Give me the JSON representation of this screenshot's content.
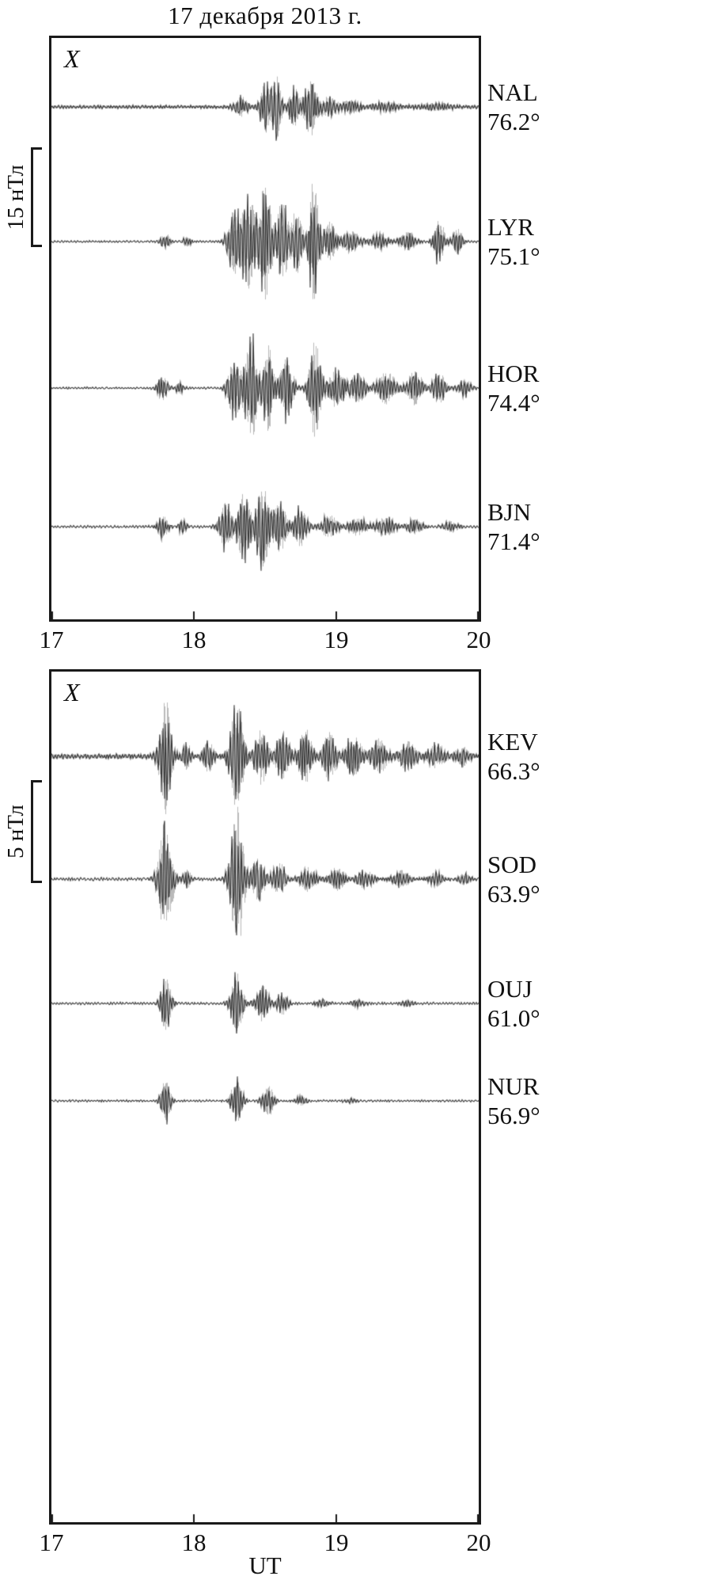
{
  "chart_data": {
    "type": "line",
    "title": "17 декабря 2013 г.",
    "xlabel": "UT",
    "x_range": [
      17,
      20
    ],
    "x_ticks": [
      "17",
      "18",
      "19",
      "20"
    ],
    "y_unit": "нТл",
    "legend_position": "right",
    "grid": false,
    "panels": [
      {
        "component": "X",
        "scale_bar": {
          "label": "15 нТл",
          "nT": 15
        },
        "series": [
          {
            "name": "NAL",
            "latitude": "76.2°",
            "baseline_noise_nT": 0.3,
            "envelope_bursts": [
              {
                "t": 18.33,
                "w": 0.05,
                "a": 1.6
              },
              {
                "t": 18.5,
                "w": 0.04,
                "a": 4.2
              },
              {
                "t": 18.58,
                "w": 0.035,
                "a": 5.4
              },
              {
                "t": 18.7,
                "w": 0.04,
                "a": 3.4
              },
              {
                "t": 18.82,
                "w": 0.05,
                "a": 5.0
              },
              {
                "t": 18.95,
                "w": 0.05,
                "a": 1.8
              },
              {
                "t": 19.1,
                "w": 0.07,
                "a": 1.0
              },
              {
                "t": 19.35,
                "w": 0.1,
                "a": 0.7
              },
              {
                "t": 19.7,
                "w": 0.12,
                "a": 0.5
              }
            ]
          },
          {
            "name": "LYR",
            "latitude": "75.1°",
            "baseline_noise_nT": 0.18,
            "envelope_bursts": [
              {
                "t": 17.8,
                "w": 0.035,
                "a": 1.4
              },
              {
                "t": 17.95,
                "w": 0.03,
                "a": 0.8
              },
              {
                "t": 18.28,
                "w": 0.05,
                "a": 5.5
              },
              {
                "t": 18.38,
                "w": 0.05,
                "a": 9.0
              },
              {
                "t": 18.5,
                "w": 0.05,
                "a": 10.5
              },
              {
                "t": 18.62,
                "w": 0.04,
                "a": 8.0
              },
              {
                "t": 18.72,
                "w": 0.04,
                "a": 6.0
              },
              {
                "t": 18.84,
                "w": 0.04,
                "a": 11.0
              },
              {
                "t": 18.95,
                "w": 0.05,
                "a": 3.5
              },
              {
                "t": 19.1,
                "w": 0.07,
                "a": 1.8
              },
              {
                "t": 19.3,
                "w": 0.07,
                "a": 1.4
              },
              {
                "t": 19.5,
                "w": 0.06,
                "a": 1.6
              },
              {
                "t": 19.72,
                "w": 0.04,
                "a": 4.2
              },
              {
                "t": 19.85,
                "w": 0.04,
                "a": 2.2
              }
            ]
          },
          {
            "name": "HOR",
            "latitude": "74.4°",
            "baseline_noise_nT": 0.18,
            "envelope_bursts": [
              {
                "t": 17.78,
                "w": 0.04,
                "a": 2.0
              },
              {
                "t": 17.9,
                "w": 0.03,
                "a": 0.9
              },
              {
                "t": 18.28,
                "w": 0.05,
                "a": 5.0
              },
              {
                "t": 18.4,
                "w": 0.05,
                "a": 9.5
              },
              {
                "t": 18.52,
                "w": 0.04,
                "a": 7.5
              },
              {
                "t": 18.65,
                "w": 0.05,
                "a": 5.5
              },
              {
                "t": 18.85,
                "w": 0.045,
                "a": 9.0
              },
              {
                "t": 19.0,
                "w": 0.06,
                "a": 3.5
              },
              {
                "t": 19.15,
                "w": 0.06,
                "a": 2.5
              },
              {
                "t": 19.35,
                "w": 0.07,
                "a": 2.8
              },
              {
                "t": 19.55,
                "w": 0.06,
                "a": 3.0
              },
              {
                "t": 19.72,
                "w": 0.05,
                "a": 2.6
              },
              {
                "t": 19.9,
                "w": 0.05,
                "a": 1.5
              }
            ]
          },
          {
            "name": "BJN",
            "latitude": "71.4°",
            "baseline_noise_nT": 0.22,
            "envelope_bursts": [
              {
                "t": 17.78,
                "w": 0.04,
                "a": 1.8
              },
              {
                "t": 17.92,
                "w": 0.03,
                "a": 1.0
              },
              {
                "t": 18.22,
                "w": 0.05,
                "a": 4.0
              },
              {
                "t": 18.35,
                "w": 0.05,
                "a": 6.0
              },
              {
                "t": 18.48,
                "w": 0.05,
                "a": 7.5
              },
              {
                "t": 18.6,
                "w": 0.05,
                "a": 5.0
              },
              {
                "t": 18.75,
                "w": 0.05,
                "a": 3.5
              },
              {
                "t": 18.95,
                "w": 0.06,
                "a": 2.0
              },
              {
                "t": 19.15,
                "w": 0.07,
                "a": 1.5
              },
              {
                "t": 19.35,
                "w": 0.07,
                "a": 1.6
              },
              {
                "t": 19.55,
                "w": 0.06,
                "a": 1.2
              },
              {
                "t": 19.8,
                "w": 0.06,
                "a": 0.8
              }
            ]
          }
        ]
      },
      {
        "component": "X",
        "scale_bar": {
          "label": "5 нТл",
          "nT": 5
        },
        "series": [
          {
            "name": "KEV",
            "latitude": "66.3°",
            "baseline_noise_nT": 0.14,
            "envelope_bursts": [
              {
                "t": 17.8,
                "w": 0.045,
                "a": 3.2
              },
              {
                "t": 17.95,
                "w": 0.03,
                "a": 0.7
              },
              {
                "t": 18.1,
                "w": 0.04,
                "a": 0.8
              },
              {
                "t": 18.3,
                "w": 0.05,
                "a": 3.0
              },
              {
                "t": 18.47,
                "w": 0.05,
                "a": 1.5
              },
              {
                "t": 18.62,
                "w": 0.05,
                "a": 1.3
              },
              {
                "t": 18.78,
                "w": 0.05,
                "a": 1.5
              },
              {
                "t": 18.95,
                "w": 0.05,
                "a": 1.3
              },
              {
                "t": 19.12,
                "w": 0.06,
                "a": 1.1
              },
              {
                "t": 19.3,
                "w": 0.06,
                "a": 0.9
              },
              {
                "t": 19.5,
                "w": 0.06,
                "a": 0.8
              },
              {
                "t": 19.7,
                "w": 0.06,
                "a": 0.6
              },
              {
                "t": 19.88,
                "w": 0.05,
                "a": 0.5
              }
            ]
          },
          {
            "name": "SOD",
            "latitude": "63.9°",
            "baseline_noise_nT": 0.09,
            "envelope_bursts": [
              {
                "t": 17.8,
                "w": 0.05,
                "a": 3.6
              },
              {
                "t": 17.95,
                "w": 0.03,
                "a": 0.5
              },
              {
                "t": 18.3,
                "w": 0.05,
                "a": 4.3
              },
              {
                "t": 18.45,
                "w": 0.05,
                "a": 1.3
              },
              {
                "t": 18.6,
                "w": 0.05,
                "a": 0.9
              },
              {
                "t": 18.8,
                "w": 0.06,
                "a": 0.7
              },
              {
                "t": 19.0,
                "w": 0.06,
                "a": 0.6
              },
              {
                "t": 19.2,
                "w": 0.06,
                "a": 0.5
              },
              {
                "t": 19.45,
                "w": 0.06,
                "a": 0.45
              },
              {
                "t": 19.7,
                "w": 0.05,
                "a": 0.35
              },
              {
                "t": 19.9,
                "w": 0.04,
                "a": 0.3
              }
            ]
          },
          {
            "name": "OUJ",
            "latitude": "61.0°",
            "baseline_noise_nT": 0.07,
            "envelope_bursts": [
              {
                "t": 17.8,
                "w": 0.04,
                "a": 1.5
              },
              {
                "t": 18.3,
                "w": 0.045,
                "a": 1.7
              },
              {
                "t": 18.48,
                "w": 0.05,
                "a": 1.0
              },
              {
                "t": 18.62,
                "w": 0.04,
                "a": 0.6
              },
              {
                "t": 18.9,
                "w": 0.05,
                "a": 0.2
              },
              {
                "t": 19.15,
                "w": 0.05,
                "a": 0.18
              },
              {
                "t": 19.5,
                "w": 0.05,
                "a": 0.15
              }
            ]
          },
          {
            "name": "NUR",
            "latitude": "56.9°",
            "baseline_noise_nT": 0.06,
            "envelope_bursts": [
              {
                "t": 17.8,
                "w": 0.035,
                "a": 1.3
              },
              {
                "t": 18.3,
                "w": 0.04,
                "a": 1.5
              },
              {
                "t": 18.52,
                "w": 0.045,
                "a": 0.8
              },
              {
                "t": 18.75,
                "w": 0.04,
                "a": 0.25
              },
              {
                "t": 19.1,
                "w": 0.05,
                "a": 0.12
              }
            ]
          }
        ]
      }
    ]
  }
}
